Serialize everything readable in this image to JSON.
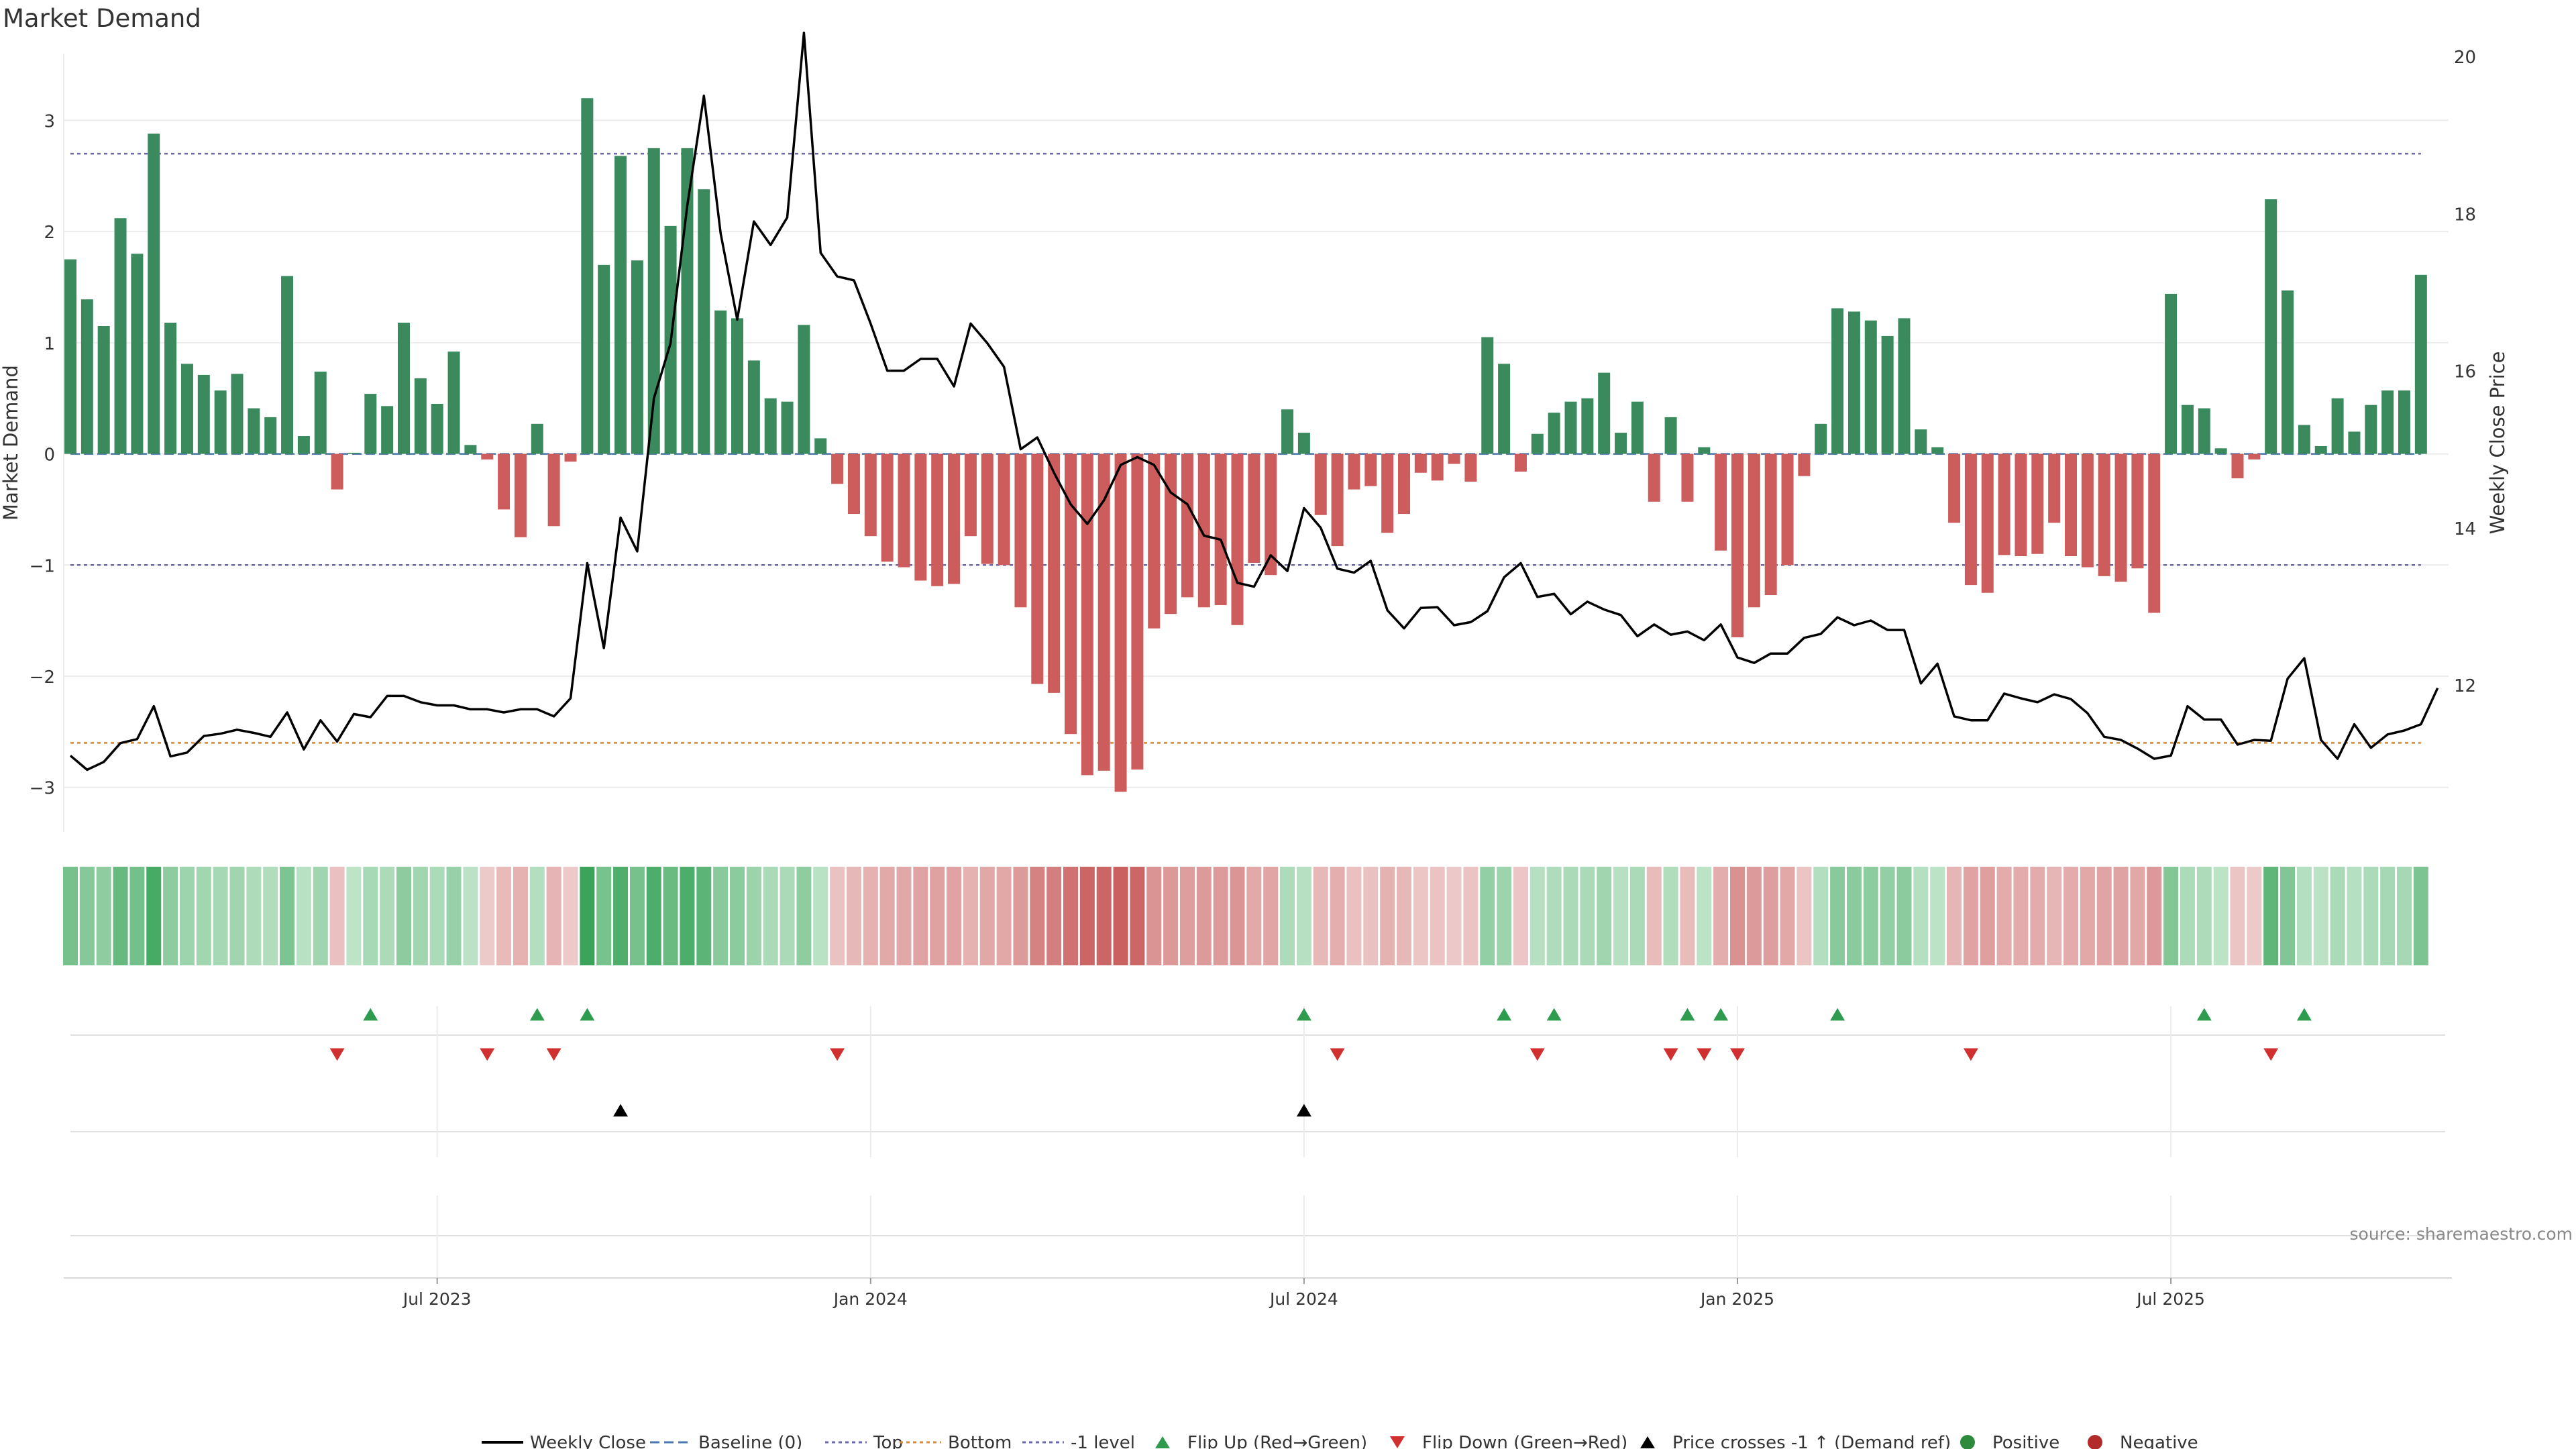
{
  "chart_data": {
    "type": "bar",
    "title": "Market Demand",
    "ylabel": "Market Demand",
    "y2label": "Weekly Close Price",
    "ylim": [
      -3.4,
      3.6
    ],
    "y_ticks": [
      3,
      2,
      1,
      0,
      -1,
      -2,
      -3
    ],
    "y_tick_labels": [
      "3",
      "2",
      "1",
      "0",
      "−1",
      "−2",
      "−3"
    ],
    "y2lim": [
      10.6,
      20.3
    ],
    "y2_ticks": [
      20,
      18,
      16,
      14,
      12
    ],
    "y2_tick_labels": [
      "20",
      "18",
      "16",
      "14",
      "12"
    ],
    "x_ticks": [
      {
        "week": 22,
        "label": "Jul 2023"
      },
      {
        "week": 48,
        "label": "Jan 2024"
      },
      {
        "week": 74,
        "label": "Jul 2024"
      },
      {
        "week": 100,
        "label": "Jan 2025"
      },
      {
        "week": 126,
        "label": "Jul 2025"
      }
    ],
    "reference_lines": [
      {
        "name": "Top",
        "value": 2.7,
        "color": "#6a68a8"
      },
      {
        "name": "Bottom",
        "value": -2.6,
        "color": "#e08a2c"
      },
      {
        "name": "-1 level",
        "value": -1.0,
        "color": "#6a68a8"
      },
      {
        "name": "Baseline (0)",
        "value": 0,
        "color": "#4a78b0"
      }
    ],
    "demand": [
      1.75,
      1.39,
      1.15,
      2.12,
      1.8,
      2.88,
      1.18,
      0.81,
      0.71,
      0.57,
      0.72,
      0.41,
      0.33,
      1.6,
      0.16,
      0.74,
      -0.32,
      0.01,
      0.54,
      0.43,
      1.18,
      0.68,
      0.45,
      0.92,
      0.08,
      -0.05,
      -0.5,
      -0.75,
      0.27,
      -0.65,
      -0.07,
      3.2,
      1.7,
      2.68,
      1.74,
      2.75,
      2.05,
      2.75,
      2.38,
      1.29,
      1.22,
      0.84,
      0.5,
      0.47,
      1.16,
      0.14,
      -0.27,
      -0.54,
      -0.74,
      -0.97,
      -1.02,
      -1.14,
      -1.19,
      -1.17,
      -0.74,
      -0.99,
      -1.0,
      -1.38,
      -2.07,
      -2.15,
      -2.52,
      -2.89,
      -2.85,
      -3.04,
      -2.84,
      -1.57,
      -1.44,
      -1.29,
      -1.38,
      -1.36,
      -1.54,
      -0.98,
      -1.09,
      0.4,
      0.19,
      -0.55,
      -0.83,
      -0.32,
      -0.29,
      -0.71,
      -0.54,
      -0.17,
      -0.24,
      -0.09,
      -0.25,
      1.05,
      0.81,
      -0.16,
      0.18,
      0.37,
      0.47,
      0.5,
      0.73,
      0.19,
      0.47,
      -0.43,
      0.33,
      -0.43,
      0.06,
      -0.87,
      -1.65,
      -1.38,
      -1.27,
      -1.0,
      -0.2,
      0.27,
      1.31,
      1.28,
      1.2,
      1.06,
      1.22,
      0.22,
      0.06,
      -0.62,
      -1.18,
      -1.25,
      -0.91,
      -0.92,
      -0.9,
      -0.62,
      -0.92,
      -1.02,
      -1.1,
      -1.15,
      -1.03,
      -1.43,
      1.44,
      0.44,
      0.41,
      0.05,
      -0.22,
      -0.05,
      2.29,
      1.47,
      0.26,
      0.07,
      0.5,
      0.2,
      0.44,
      0.57,
      0.57,
      1.61
    ],
    "close": [
      11.1,
      10.92,
      11.02,
      11.26,
      11.31,
      11.73,
      11.09,
      11.14,
      11.35,
      11.38,
      11.43,
      11.39,
      11.34,
      11.65,
      11.18,
      11.55,
      11.28,
      11.63,
      11.59,
      11.86,
      11.86,
      11.78,
      11.74,
      11.74,
      11.69,
      11.69,
      11.65,
      11.69,
      11.69,
      11.6,
      11.83,
      13.55,
      12.47,
      14.13,
      13.7,
      15.65,
      16.35,
      18.1,
      19.5,
      17.75,
      16.65,
      17.9,
      17.6,
      17.95,
      20.3,
      17.5,
      17.2,
      17.15,
      16.6,
      16.0,
      16.0,
      16.15,
      16.15,
      15.8,
      16.6,
      16.35,
      16.05,
      15.0,
      15.15,
      14.7,
      14.3,
      14.05,
      14.35,
      14.8,
      14.9,
      14.8,
      14.45,
      14.3,
      13.9,
      13.85,
      13.3,
      13.25,
      13.65,
      13.45,
      14.25,
      14.0,
      13.48,
      13.43,
      13.58,
      12.95,
      12.72,
      12.98,
      12.99,
      12.76,
      12.8,
      12.94,
      13.37,
      13.55,
      13.12,
      13.16,
      12.9,
      13.06,
      12.96,
      12.89,
      12.62,
      12.77,
      12.64,
      12.68,
      12.57,
      12.77,
      12.35,
      12.28,
      12.4,
      12.4,
      12.6,
      12.65,
      12.86,
      12.76,
      12.82,
      12.7,
      12.7,
      12.02,
      12.27,
      11.6,
      11.55,
      11.55,
      11.89,
      11.83,
      11.78,
      11.88,
      11.82,
      11.64,
      11.34,
      11.3,
      11.19,
      11.06,
      11.1,
      11.73,
      11.56,
      11.56,
      11.24,
      11.3,
      11.29,
      12.08,
      12.34,
      11.3,
      11.06,
      11.5,
      11.2,
      11.37,
      11.42,
      11.5,
      11.96
    ],
    "flip_up_weeks": [
      18,
      28,
      31,
      74,
      86,
      89,
      97,
      99,
      106,
      128,
      134
    ],
    "flip_down_weeks": [
      16,
      25,
      29,
      46,
      76,
      88,
      96,
      98,
      100,
      114,
      132
    ],
    "price_cross_weeks": [
      33,
      74
    ],
    "legend": [
      {
        "label": "Weekly Close",
        "kind": "line",
        "color": "#000000"
      },
      {
        "label": "Baseline (0)",
        "kind": "dash",
        "color": "#4a78b0"
      },
      {
        "label": "Top",
        "kind": "dot",
        "color": "#6a68a8"
      },
      {
        "label": "Bottom",
        "kind": "dot",
        "color": "#e08a2c"
      },
      {
        "label": "-1 level",
        "kind": "dot",
        "color": "#6a68a8"
      },
      {
        "label": "Flip Up (Red→Green)",
        "kind": "tri-up",
        "color": "#2e9b4f"
      },
      {
        "label": "Flip Down (Green→Red)",
        "kind": "tri-down",
        "color": "#d03030"
      },
      {
        "label": "Price crosses -1 ↑ (Demand ref)",
        "kind": "tri-up",
        "color": "#000000"
      },
      {
        "label": "Positive",
        "kind": "circle",
        "color": "#2e8b3e"
      },
      {
        "label": "Negative",
        "kind": "circle",
        "color": "#b22a2a"
      }
    ],
    "colors": {
      "positive_bar": "#3a8a5e",
      "negative_bar": "#cd5c5c",
      "price_line": "#000000",
      "grid": "#ececec"
    }
  },
  "source": "source: sharemaestro.com"
}
